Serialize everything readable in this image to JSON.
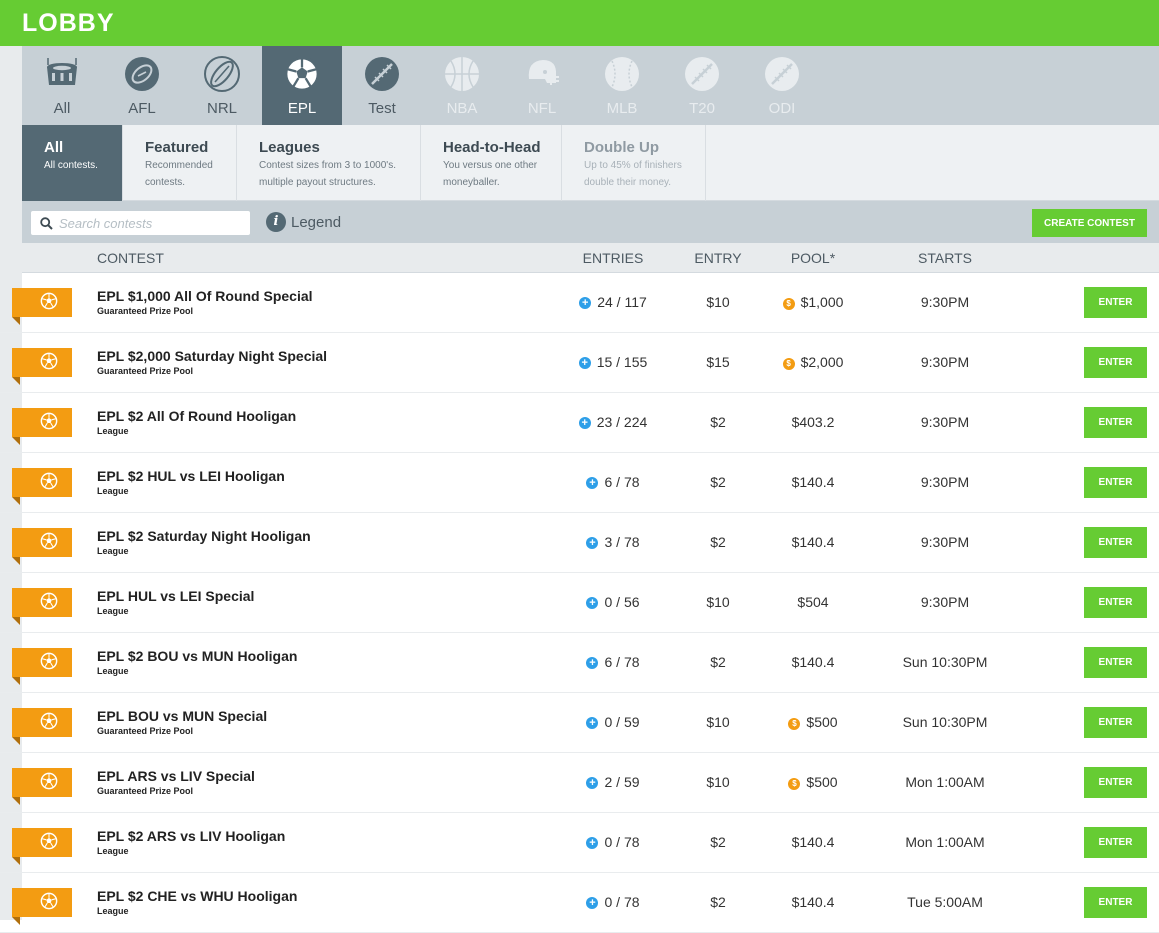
{
  "header": {
    "title": "LOBBY"
  },
  "sports": [
    {
      "label": "All",
      "icon": "stadium-icon",
      "state": "normal"
    },
    {
      "label": "AFL",
      "icon": "afl-football-icon",
      "state": "normal"
    },
    {
      "label": "NRL",
      "icon": "rugby-ball-icon",
      "state": "normal"
    },
    {
      "label": "EPL",
      "icon": "soccer-ball-icon",
      "state": "active"
    },
    {
      "label": "Test",
      "icon": "cricket-ball-icon",
      "state": "normal"
    },
    {
      "label": "NBA",
      "icon": "basketball-icon",
      "state": "disabled"
    },
    {
      "label": "NFL",
      "icon": "football-helmet-icon",
      "state": "disabled"
    },
    {
      "label": "MLB",
      "icon": "baseball-icon",
      "state": "disabled"
    },
    {
      "label": "T20",
      "icon": "cricket-ball-icon",
      "state": "disabled"
    },
    {
      "label": "ODI",
      "icon": "cricket-ball-icon",
      "state": "disabled"
    }
  ],
  "filters": [
    {
      "title": "All",
      "sub1": "All contests.",
      "sub2": ""
    },
    {
      "title": "Featured",
      "sub1": "Recommended",
      "sub2": "contests."
    },
    {
      "title": "Leagues",
      "sub1": "Contest sizes from 3 to 1000's.",
      "sub2": "multiple payout structures."
    },
    {
      "title": "Head-to-Head",
      "sub1": "You versus one other",
      "sub2": "moneyballer."
    },
    {
      "title": "Double Up",
      "sub1": "Up to 45% of finishers",
      "sub2": "double their money."
    }
  ],
  "toolbar": {
    "search_placeholder": "Search contests",
    "legend_label": "Legend",
    "create_label": "CREATE CONTEST"
  },
  "table": {
    "headers": {
      "contest": "CONTEST",
      "entries": "ENTRIES",
      "entry": "ENTRY",
      "pool": "POOL*",
      "starts": "STARTS"
    },
    "enter_label": "ENTER",
    "rows": [
      {
        "name": "EPL $1,000 All Of Round Special",
        "type": "Guaranteed Prize Pool",
        "entries": "24 / 117",
        "entry": "$10",
        "pool": "$1,000",
        "gpp": true,
        "starts": "9:30PM"
      },
      {
        "name": "EPL $2,000 Saturday Night Special",
        "type": "Guaranteed Prize Pool",
        "entries": "15 / 155",
        "entry": "$15",
        "pool": "$2,000",
        "gpp": true,
        "starts": "9:30PM"
      },
      {
        "name": "EPL $2 All Of Round Hooligan",
        "type": "League",
        "entries": "23 / 224",
        "entry": "$2",
        "pool": "$403.2",
        "gpp": false,
        "starts": "9:30PM"
      },
      {
        "name": "EPL $2 HUL vs LEI Hooligan",
        "type": "League",
        "entries": "6 / 78",
        "entry": "$2",
        "pool": "$140.4",
        "gpp": false,
        "starts": "9:30PM"
      },
      {
        "name": "EPL $2 Saturday Night Hooligan",
        "type": "League",
        "entries": "3 / 78",
        "entry": "$2",
        "pool": "$140.4",
        "gpp": false,
        "starts": "9:30PM"
      },
      {
        "name": "EPL HUL vs LEI Special",
        "type": "League",
        "entries": "0 / 56",
        "entry": "$10",
        "pool": "$504",
        "gpp": false,
        "starts": "9:30PM"
      },
      {
        "name": "EPL $2 BOU vs MUN Hooligan",
        "type": "League",
        "entries": "6 / 78",
        "entry": "$2",
        "pool": "$140.4",
        "gpp": false,
        "starts": "Sun 10:30PM"
      },
      {
        "name": "EPL BOU vs MUN Special",
        "type": "Guaranteed Prize Pool",
        "entries": "0 / 59",
        "entry": "$10",
        "pool": "$500",
        "gpp": true,
        "starts": "Sun 10:30PM"
      },
      {
        "name": "EPL ARS vs LIV Special",
        "type": "Guaranteed Prize Pool",
        "entries": "2 / 59",
        "entry": "$10",
        "pool": "$500",
        "gpp": true,
        "starts": "Mon 1:00AM"
      },
      {
        "name": "EPL $2 ARS vs LIV Hooligan",
        "type": "League",
        "entries": "0 / 78",
        "entry": "$2",
        "pool": "$140.4",
        "gpp": false,
        "starts": "Mon 1:00AM"
      },
      {
        "name": "EPL $2 CHE vs WHU Hooligan",
        "type": "League",
        "entries": "0 / 78",
        "entry": "$2",
        "pool": "$140.4",
        "gpp": false,
        "starts": "Tue 5:00AM"
      }
    ]
  }
}
